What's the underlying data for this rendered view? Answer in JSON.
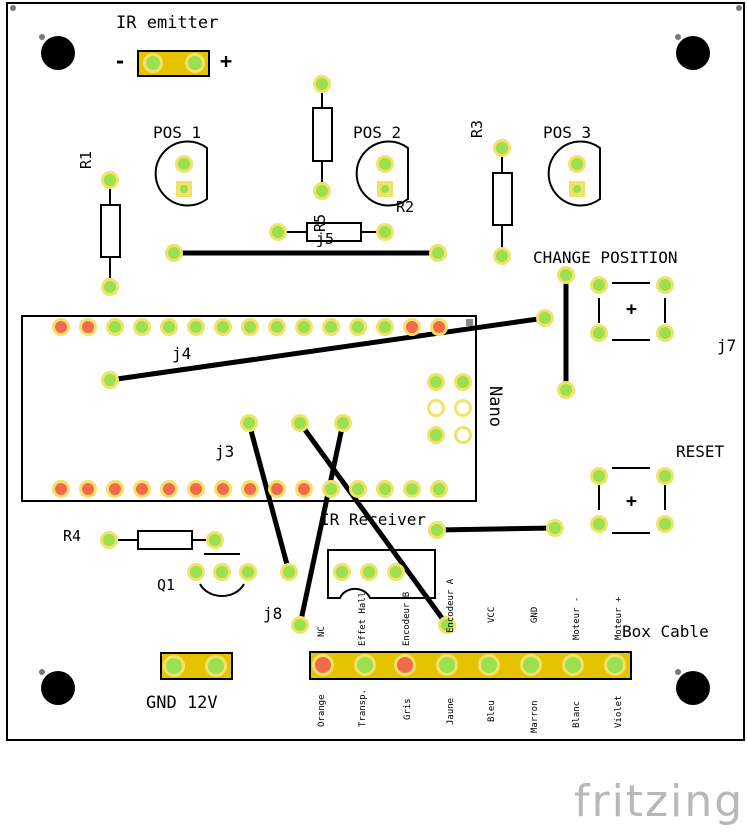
{
  "labels": {
    "ir_emitter": "IR emitter",
    "minus": "-",
    "plus": "+",
    "pos1": "POS 1",
    "pos2": "POS 2",
    "pos3": "POS 3",
    "r1": "R1",
    "r2": "R2",
    "r3": "R3",
    "r4": "R4",
    "r5": "R5",
    "j3": "j3",
    "j4": "j4",
    "j5": "j5",
    "j7": "j7",
    "j8": "j8",
    "q1": "Q1",
    "nano": "Nano",
    "change_position": "CHANGE POSITION",
    "reset": "RESET",
    "ir_receiver": "IR Receiver",
    "box_cable": "Box Cable",
    "gnd_12v": "GND 12V",
    "button_plus": "+"
  },
  "cable_functions": [
    "NC",
    "Effet Hall",
    "Encodeur B",
    "Encodeur A",
    "VCC",
    "GND",
    "Moteur -",
    "Moteur +"
  ],
  "cable_colors": [
    "Orange",
    "Transp.",
    "Gris",
    "Jaune",
    "Bleu",
    "Marron",
    "Blanc",
    "Violet"
  ],
  "brand": "fritzing",
  "colors": {
    "pad_green": "#9be04e",
    "pad_red": "#f46a4a",
    "pad_ring": "#f2e26a",
    "trace": "#000000",
    "brand_grey": "#b8b8b8"
  }
}
